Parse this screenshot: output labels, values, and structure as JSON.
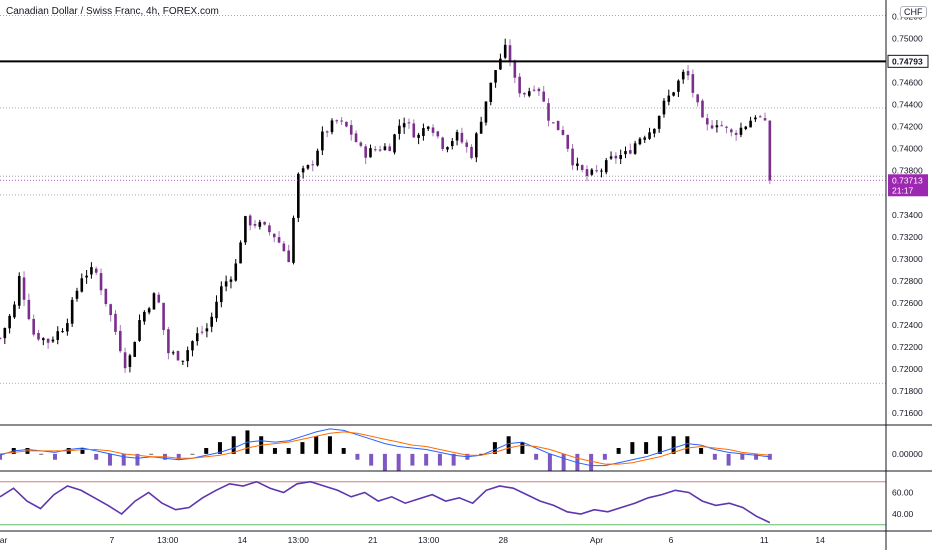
{
  "title": "Canadian Dollar / Swiss Franc, 4h, FOREX.com",
  "currency_label": "CHF",
  "colors": {
    "up": "#000000",
    "down": "#7b2e8e",
    "wick_up": "#000000",
    "wick_down": "#a678b5",
    "hline": "#000000",
    "grid": "#9598a1",
    "price_tag": "#9c27b0",
    "macd_line": "#2962ff",
    "signal_line": "#ff6d00",
    "hist_pos": "#000000",
    "hist_neg": "#7e57c2",
    "rsi_line": "#5e35b1",
    "rsi_upper": "#e57373",
    "rsi_lower": "#66bb6a"
  },
  "chart_data": [
    {
      "type": "candlestick",
      "title": "Canadian Dollar / Swiss Franc, 4h, FOREX.com",
      "ylim": [
        0.715,
        0.7535
      ],
      "yticks": [
        "0.75200",
        "0.75000",
        "0.74600",
        "0.74400",
        "0.74200",
        "0.74000",
        "0.73800",
        "0.73400",
        "0.73200",
        "0.73000",
        "0.72800",
        "0.72600",
        "0.72400",
        "0.72200",
        "0.72000",
        "0.71800",
        "0.71600"
      ],
      "xticks": [
        {
          "label": "Mar",
          "x": 0.0
        },
        {
          "label": "7",
          "x": 6.0
        },
        {
          "label": "13:00",
          "x": 9.0
        },
        {
          "label": "14",
          "x": 13.0
        },
        {
          "label": "13:00",
          "x": 16.0
        },
        {
          "label": "21",
          "x": 20.0
        },
        {
          "label": "13:00",
          "x": 23.0
        },
        {
          "label": "28",
          "x": 27.0
        },
        {
          "label": "Apr",
          "x": 32.0
        },
        {
          "label": "6",
          "x": 36.0
        },
        {
          "label": "11",
          "x": 41.0
        },
        {
          "label": "14",
          "x": 44.0
        }
      ],
      "x_end": 44.5,
      "grid_levels": [
        0.7521,
        0.7437,
        0.7375,
        0.7358,
        0.7187
      ],
      "horizontal_line": 0.74793,
      "horizontal_line_label": "0.74793",
      "last_price_label": "0.73713",
      "countdown_label": "21:17",
      "last_price": 0.73713,
      "anchors": [
        [
          0.0,
          0.7228
        ],
        [
          0.8,
          0.7258
        ],
        [
          1.0,
          0.7285
        ],
        [
          1.8,
          0.7232
        ],
        [
          2.6,
          0.7225
        ],
        [
          3.5,
          0.724
        ],
        [
          4.4,
          0.7285
        ],
        [
          5.1,
          0.729
        ],
        [
          6.0,
          0.7245
        ],
        [
          6.8,
          0.72
        ],
        [
          7.5,
          0.7245
        ],
        [
          8.4,
          0.727
        ],
        [
          9.0,
          0.7215
        ],
        [
          9.8,
          0.721
        ],
        [
          10.5,
          0.723
        ],
        [
          11.2,
          0.7238
        ],
        [
          11.8,
          0.7272
        ],
        [
          12.6,
          0.729
        ],
        [
          13.1,
          0.7335
        ],
        [
          14.0,
          0.733
        ],
        [
          14.8,
          0.732
        ],
        [
          15.5,
          0.73
        ],
        [
          16.0,
          0.7375
        ],
        [
          16.7,
          0.7385
        ],
        [
          17.3,
          0.7412
        ],
        [
          18.0,
          0.7425
        ],
        [
          18.7,
          0.7418
        ],
        [
          19.5,
          0.7395
        ],
        [
          20.2,
          0.74
        ],
        [
          20.9,
          0.7402
        ],
        [
          21.6,
          0.7428
        ],
        [
          22.4,
          0.741
        ],
        [
          23.0,
          0.7425
        ],
        [
          23.8,
          0.7402
        ],
        [
          24.5,
          0.7412
        ],
        [
          25.3,
          0.7395
        ],
        [
          26.0,
          0.744
        ],
        [
          26.7,
          0.7478
        ],
        [
          27.2,
          0.7493
        ],
        [
          27.7,
          0.7455
        ],
        [
          28.2,
          0.745
        ],
        [
          28.8,
          0.746
        ],
        [
          29.5,
          0.7425
        ],
        [
          30.2,
          0.7415
        ],
        [
          30.8,
          0.7385
        ],
        [
          31.5,
          0.7375
        ],
        [
          32.2,
          0.738
        ],
        [
          32.9,
          0.7392
        ],
        [
          33.6,
          0.7395
        ],
        [
          34.3,
          0.741
        ],
        [
          35.0,
          0.7418
        ],
        [
          35.6,
          0.744
        ],
        [
          36.2,
          0.7455
        ],
        [
          36.8,
          0.7472
        ],
        [
          37.2,
          0.745
        ],
        [
          37.8,
          0.7418
        ],
        [
          38.5,
          0.7425
        ],
        [
          39.2,
          0.7413
        ],
        [
          39.9,
          0.742
        ],
        [
          40.6,
          0.7432
        ],
        [
          41.1,
          0.742
        ],
        [
          41.3,
          0.7372
        ]
      ]
    },
    {
      "type": "line",
      "title": "",
      "yticks": [
        "0.00000"
      ],
      "ylim": [
        -0.0011,
        0.0019
      ],
      "series": [
        {
          "role": "macd",
          "values": [
            -0.0001,
            0.0002,
            0.0003,
            0.0002,
            0.0001,
            0.0003,
            0.0004,
            0.0002,
            0.0,
            -0.0002,
            -0.0003,
            -0.0002,
            -0.0003,
            -0.0004,
            -0.0003,
            -0.0001,
            0.0001,
            0.0004,
            0.0008,
            0.0009,
            0.0008,
            0.0009,
            0.0012,
            0.0015,
            0.0017,
            0.0016,
            0.0013,
            0.001,
            0.0007,
            0.0005,
            0.0004,
            0.0003,
            0.0001,
            -0.0001,
            -0.0002,
            -0.0001,
            0.0003,
            0.0007,
            0.0008,
            0.0004,
            0.0,
            -0.0003,
            -0.0006,
            -0.0008,
            -0.0008,
            -0.0006,
            -0.0004,
            -0.0002,
            0.0001,
            0.0004,
            0.0007,
            0.0006,
            0.0003,
            0.0001,
            0.0,
            -0.0001,
            -0.0002
          ]
        },
        {
          "role": "signal",
          "values": [
            0.0,
            0.0001,
            0.0002,
            0.0002,
            0.0002,
            0.0002,
            0.0003,
            0.0003,
            0.0002,
            0.0,
            -0.0001,
            -0.0002,
            -0.0002,
            -0.0003,
            -0.0003,
            -0.0002,
            -0.0001,
            0.0001,
            0.0004,
            0.0006,
            0.0007,
            0.0008,
            0.001,
            0.0012,
            0.0014,
            0.0015,
            0.0014,
            0.0012,
            0.001,
            0.0008,
            0.0006,
            0.0005,
            0.0003,
            0.0001,
            -0.0001,
            -0.0001,
            0.0001,
            0.0004,
            0.0006,
            0.0005,
            0.0003,
            0.0,
            -0.0003,
            -0.0005,
            -0.0007,
            -0.0007,
            -0.0006,
            -0.0004,
            -0.0002,
            0.0001,
            0.0004,
            0.0005,
            0.0004,
            0.0003,
            0.0001,
            0.0,
            -0.0001
          ]
        }
      ]
    },
    {
      "type": "line",
      "title": "",
      "yticks": [
        "60.00",
        "40.00"
      ],
      "ylim": [
        27,
        79
      ],
      "upper_band": 70,
      "lower_band": 30,
      "series": [
        {
          "role": "rsi",
          "values": [
            56,
            64,
            52,
            45,
            58,
            66,
            62,
            55,
            48,
            40,
            52,
            60,
            50,
            44,
            46,
            55,
            62,
            68,
            66,
            70,
            64,
            60,
            68,
            70,
            66,
            62,
            56,
            60,
            52,
            56,
            50,
            54,
            58,
            52,
            55,
            50,
            62,
            66,
            64,
            58,
            52,
            48,
            42,
            40,
            44,
            42,
            46,
            50,
            55,
            58,
            62,
            60,
            52,
            48,
            50,
            46,
            38,
            32
          ]
        }
      ]
    }
  ]
}
